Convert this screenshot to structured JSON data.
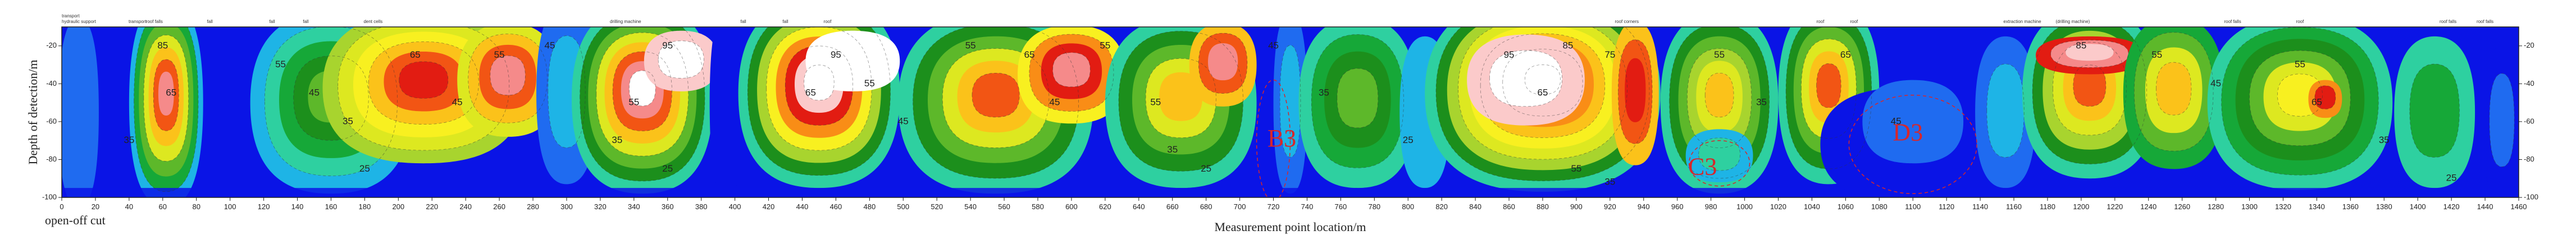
{
  "chart_data": {
    "type": "heatmap",
    "title": "",
    "xlabel": "Measurement point location/m",
    "ylabel": "Depth of detection/m",
    "corner_label": "open-off cut",
    "xlim": [
      0,
      1460
    ],
    "ylim": [
      -100,
      -10
    ],
    "x_ticks": [
      0,
      20,
      40,
      60,
      80,
      100,
      120,
      140,
      160,
      180,
      200,
      220,
      240,
      260,
      280,
      300,
      320,
      340,
      360,
      380,
      400,
      420,
      440,
      460,
      480,
      500,
      520,
      540,
      560,
      580,
      600,
      620,
      640,
      660,
      680,
      700,
      720,
      740,
      760,
      780,
      800,
      820,
      840,
      860,
      880,
      900,
      920,
      940,
      960,
      980,
      1000,
      1020,
      1040,
      1060,
      1080,
      1100,
      1120,
      1140,
      1160,
      1180,
      1200,
      1220,
      1240,
      1260,
      1280,
      1300,
      1320,
      1340,
      1360,
      1380,
      1400,
      1420,
      1440,
      1460
    ],
    "y_ticks": [
      -100,
      -80,
      -60,
      -40,
      -20
    ],
    "color_scale": [
      {
        "level": 15,
        "color": "#0a14e6"
      },
      {
        "level": 20,
        "color": "#1f6bf0"
      },
      {
        "level": 25,
        "color": "#1eb4e6"
      },
      {
        "level": 30,
        "color": "#2ed0a0"
      },
      {
        "level": 35,
        "color": "#16a838"
      },
      {
        "level": 40,
        "color": "#1c8f1c"
      },
      {
        "level": 45,
        "color": "#5db82a"
      },
      {
        "level": 50,
        "color": "#a8d42e"
      },
      {
        "level": 55,
        "color": "#dde820"
      },
      {
        "level": 60,
        "color": "#f8f020"
      },
      {
        "level": 65,
        "color": "#fbc21a"
      },
      {
        "level": 70,
        "color": "#f98d16"
      },
      {
        "level": 75,
        "color": "#f25514"
      },
      {
        "level": 80,
        "color": "#e21c12"
      },
      {
        "level": 85,
        "color": "#f58a8a"
      },
      {
        "level": 90,
        "color": "#fbcaca"
      },
      {
        "level": 95,
        "color": "#ffffff"
      }
    ],
    "top_labels": [
      {
        "x": 0,
        "text": "hydraulic support"
      },
      {
        "x": 0,
        "text": "transport"
      },
      {
        "x": 45,
        "text": "transport"
      },
      {
        "x": 55,
        "text": "roof falls"
      },
      {
        "x": 88,
        "text": "fall"
      },
      {
        "x": 125,
        "text": "fall"
      },
      {
        "x": 145,
        "text": "fall"
      },
      {
        "x": 185,
        "text": "dent cells"
      },
      {
        "x": 335,
        "text": "drilling machine"
      },
      {
        "x": 405,
        "text": "fall"
      },
      {
        "x": 430,
        "text": "fall"
      },
      {
        "x": 455,
        "text": "roof"
      },
      {
        "x": 930,
        "text": "roof corners"
      },
      {
        "x": 1045,
        "text": "roof"
      },
      {
        "x": 1065,
        "text": "roof"
      },
      {
        "x": 1165,
        "text": "extraction machine"
      },
      {
        "x": 1195,
        "text": "(drilling machine)"
      },
      {
        "x": 1290,
        "text": "roof falls"
      },
      {
        "x": 1330,
        "text": "roof"
      },
      {
        "x": 1418,
        "text": "roof falls"
      },
      {
        "x": 1440,
        "text": "roof falls"
      }
    ],
    "contour_labels": [
      {
        "x": 60,
        "y": -20,
        "text": "85"
      },
      {
        "x": 65,
        "y": -45,
        "text": "65"
      },
      {
        "x": 40,
        "y": -70,
        "text": "35"
      },
      {
        "x": 130,
        "y": -30,
        "text": "55"
      },
      {
        "x": 150,
        "y": -45,
        "text": "45"
      },
      {
        "x": 170,
        "y": -60,
        "text": "35"
      },
      {
        "x": 180,
        "y": -85,
        "text": "25"
      },
      {
        "x": 210,
        "y": -25,
        "text": "65"
      },
      {
        "x": 235,
        "y": -50,
        "text": "45"
      },
      {
        "x": 260,
        "y": -25,
        "text": "55"
      },
      {
        "x": 290,
        "y": -20,
        "text": "45"
      },
      {
        "x": 360,
        "y": -20,
        "text": "95"
      },
      {
        "x": 340,
        "y": -50,
        "text": "55"
      },
      {
        "x": 330,
        "y": -70,
        "text": "35"
      },
      {
        "x": 360,
        "y": -85,
        "text": "25"
      },
      {
        "x": 460,
        "y": -25,
        "text": "95"
      },
      {
        "x": 445,
        "y": -45,
        "text": "65"
      },
      {
        "x": 480,
        "y": -40,
        "text": "55"
      },
      {
        "x": 500,
        "y": -60,
        "text": "45"
      },
      {
        "x": 540,
        "y": -20,
        "text": "55"
      },
      {
        "x": 575,
        "y": -25,
        "text": "65"
      },
      {
        "x": 590,
        "y": -50,
        "text": "45"
      },
      {
        "x": 620,
        "y": -20,
        "text": "55"
      },
      {
        "x": 650,
        "y": -50,
        "text": "55"
      },
      {
        "x": 660,
        "y": -75,
        "text": "35"
      },
      {
        "x": 680,
        "y": -85,
        "text": "25"
      },
      {
        "x": 720,
        "y": -20,
        "text": "45"
      },
      {
        "x": 750,
        "y": -45,
        "text": "35"
      },
      {
        "x": 800,
        "y": -70,
        "text": "25"
      },
      {
        "x": 860,
        "y": -25,
        "text": "95"
      },
      {
        "x": 895,
        "y": -20,
        "text": "85"
      },
      {
        "x": 880,
        "y": -45,
        "text": "65"
      },
      {
        "x": 920,
        "y": -25,
        "text": "75"
      },
      {
        "x": 900,
        "y": -85,
        "text": "55"
      },
      {
        "x": 920,
        "y": -92,
        "text": "35"
      },
      {
        "x": 985,
        "y": -25,
        "text": "55"
      },
      {
        "x": 1010,
        "y": -50,
        "text": "35"
      },
      {
        "x": 1060,
        "y": -25,
        "text": "65"
      },
      {
        "x": 1090,
        "y": -60,
        "text": "45"
      },
      {
        "x": 1200,
        "y": -20,
        "text": "85"
      },
      {
        "x": 1245,
        "y": -25,
        "text": "55"
      },
      {
        "x": 1280,
        "y": -40,
        "text": "45"
      },
      {
        "x": 1330,
        "y": -30,
        "text": "55"
      },
      {
        "x": 1340,
        "y": -50,
        "text": "65"
      },
      {
        "x": 1380,
        "y": -70,
        "text": "35"
      },
      {
        "x": 1420,
        "y": -90,
        "text": "25"
      }
    ],
    "zones": [
      {
        "label": "B3",
        "x": 720,
        "y": -70,
        "rx": 10,
        "ry": 32,
        "label_x": 725,
        "label_y": -70
      },
      {
        "label": "C3",
        "x": 985,
        "y": -82,
        "rx": 18,
        "ry": 12,
        "label_x": 975,
        "label_y": -85
      },
      {
        "label": "D3",
        "x": 1100,
        "y": -72,
        "rx": 38,
        "ry": 26,
        "label_x": 1097,
        "label_y": -67
      }
    ],
    "grid": false,
    "legend": "none"
  }
}
